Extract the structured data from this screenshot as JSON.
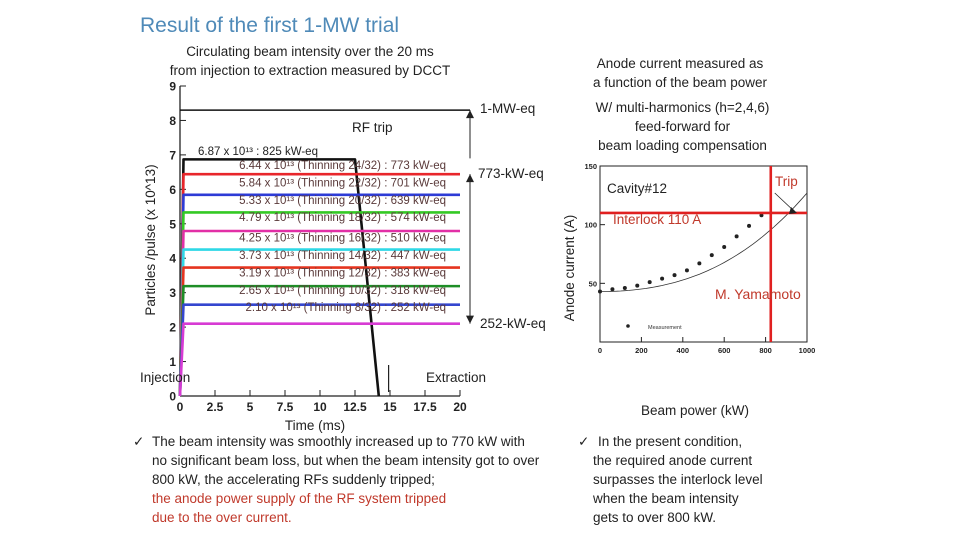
{
  "title": "Result of the first 1-MW trial",
  "left_caption": [
    "Circulating beam intensity over the 20 ms",
    "from injection to extraction measured by DCCT"
  ],
  "right_caption": [
    "Anode current measured as",
    "a function of the beam power"
  ],
  "harmonics_note": [
    "W/ multi-harmonics (h=2,4,6)",
    "feed-forward for",
    "beam loading compensation"
  ],
  "chart_data": [
    {
      "type": "line",
      "title": "Circulating beam intensity (DCCT)",
      "xlabel": "Time (ms)",
      "ylabel": "Particles /pulse (x 10^13)",
      "xlim": [
        0,
        20
      ],
      "ylim": [
        0,
        9
      ],
      "xticks": [
        "0",
        "2.5",
        "5",
        "7.5",
        "10",
        "12.5",
        "15",
        "17.5",
        "20"
      ],
      "yticks": [
        "0",
        "1",
        "2",
        "3",
        "4",
        "5",
        "6",
        "7",
        "8",
        "9"
      ],
      "annotations": {
        "rf_trip": "RF trip",
        "one_mw": "1-MW-eq",
        "kw773": "773-kW-eq",
        "kw252": "252-kW-eq",
        "injection": "Injection",
        "extraction": "Extraction",
        "top_label": "6.87 x 10¹³ : 825 kW-eq"
      },
      "series": [
        {
          "name": "6.87 x 10¹³ : 825 kW-eq",
          "value": 6.87,
          "color": "#111111",
          "trip_ms": 12.5
        },
        {
          "name": "6.44 x 10¹³ (Thinning 24/32) : 773 kW-eq",
          "value": 6.44,
          "color": "#e8262b"
        },
        {
          "name": "5.84 x 10¹³ (Thinning 22/32) : 701 kW-eq",
          "value": 5.84,
          "color": "#2d3bd6"
        },
        {
          "name": "5.33 x 10¹³ (Thinning 20/32) : 639 kW-eq",
          "value": 5.33,
          "color": "#34c924"
        },
        {
          "name": "4.79 x 10¹³ (Thinning 18/32) : 574 kW-eq",
          "value": 4.79,
          "color": "#e22fa6"
        },
        {
          "name": "4.25 x 10¹³ (Thinning 16/32) : 510 kW-eq",
          "value": 4.25,
          "color": "#2fd8e6"
        },
        {
          "name": "3.73 x 10¹³ (Thinning 14/32) : 447 kW-eq",
          "value": 3.73,
          "color": "#e5341f"
        },
        {
          "name": "3.19 x 10¹³ (Thinning 12/32) : 383 kW-eq",
          "value": 3.19,
          "color": "#1e8e26"
        },
        {
          "name": "2.65 x 10¹³ (Thinning 10/32) : 318 kW-eq",
          "value": 2.65,
          "color": "#3446cf"
        },
        {
          "name": "2.10 x 10¹³ (Thinning  8/32) : 252 kW-eq",
          "value": 2.1,
          "color": "#d73bd3"
        }
      ],
      "one_mw_level": 8.3
    },
    {
      "type": "scatter",
      "title": "Anode current vs beam power",
      "xlabel": "Beam power (kW)",
      "ylabel": "Anode current (A)",
      "xlim": [
        0,
        1000
      ],
      "ylim": [
        0,
        150
      ],
      "xticks": [
        "0",
        "200",
        "400",
        "600",
        "800",
        "1000"
      ],
      "yticks": [
        "50",
        "100",
        "150"
      ],
      "legend": "Measurement",
      "cavity_label": "Cavity#12",
      "interlock_label": "Interlock 110 A",
      "interlock_level": 110,
      "trip_label": "Trip",
      "trip_power_kw": 825,
      "credit": "M. Yamamoto",
      "x": [
        0,
        60,
        120,
        180,
        240,
        300,
        360,
        420,
        480,
        540,
        600,
        660,
        720,
        780
      ],
      "y": [
        43,
        45,
        46,
        48,
        51,
        54,
        57,
        61,
        67,
        74,
        81,
        90,
        99,
        108
      ],
      "fit_y_at_1000": 127
    }
  ],
  "bullet_left": [
    {
      "text": "The beam intensity was smoothly increased up to 770 kW with",
      "color": "normal"
    },
    {
      "text": "no significant beam loss, but when the beam intensity got to over",
      "color": "normal"
    },
    {
      "text": "800 kW,  the accelerating RFs suddenly tripped;",
      "color": "normal"
    },
    {
      "text": "the anode power supply of the RF system tripped",
      "color": "red"
    },
    {
      "text": "due to the over current.",
      "color": "red"
    }
  ],
  "bullet_right": [
    "In the present condition,",
    "the required anode current",
    "surpasses the interlock level",
    "when the beam intensity",
    "gets to over 800 kW."
  ],
  "check_mark": "✓"
}
